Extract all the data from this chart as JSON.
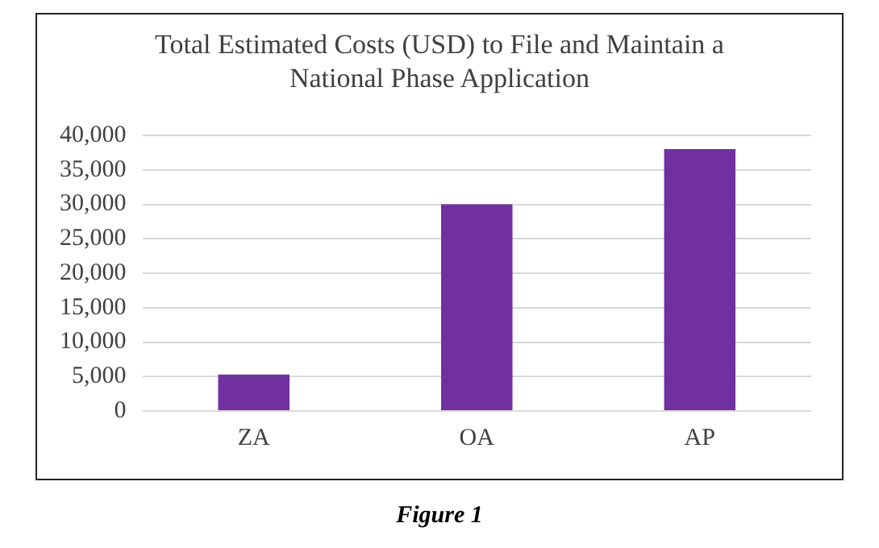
{
  "chart_data": {
    "type": "bar",
    "title": "Total Estimated Costs (USD) to File and Maintain a National Phase Application",
    "categories": [
      "ZA",
      "OA",
      "AP"
    ],
    "values": [
      5300,
      30000,
      38000
    ],
    "color": "#7030a0",
    "ylim": [
      0,
      40000
    ],
    "yticks": [
      0,
      {
        "value": 5000,
        "label": "5,000"
      },
      {
        "value": 10000,
        "label": "10,000"
      },
      {
        "value": 15000,
        "label": "15,000"
      },
      {
        "value": 20000,
        "label": "20,000"
      },
      {
        "value": 25000,
        "label": "25,000"
      },
      {
        "value": 30000,
        "label": "30,000"
      },
      {
        "value": 35000,
        "label": "35,000"
      },
      {
        "value": 40000,
        "label": "40,000"
      }
    ],
    "grid": "y",
    "legend": false,
    "annotations": [
      "Figure 1"
    ]
  }
}
